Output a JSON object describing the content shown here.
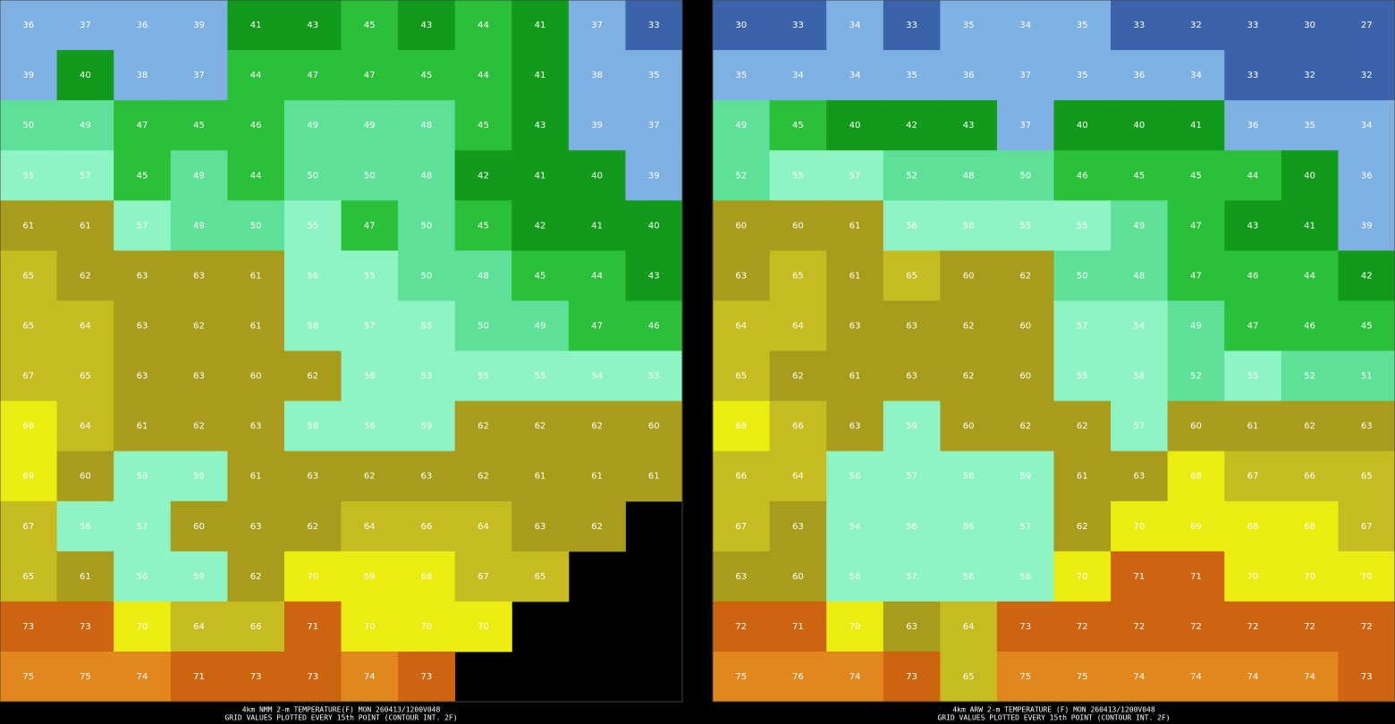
{
  "panels": [
    {
      "grid": [
        [
          36,
          37,
          36,
          39,
          41,
          43,
          45,
          43,
          44,
          41,
          37,
          33
        ],
        [
          39,
          40,
          38,
          37,
          44,
          47,
          47,
          45,
          44,
          41,
          38,
          35
        ],
        [
          50,
          49,
          47,
          45,
          46,
          49,
          49,
          48,
          45,
          43,
          39,
          37
        ],
        [
          55,
          57,
          45,
          49,
          44,
          50,
          50,
          48,
          42,
          41,
          40,
          39
        ],
        [
          61,
          61,
          57,
          49,
          50,
          55,
          47,
          50,
          45,
          42,
          41,
          40
        ],
        [
          65,
          62,
          63,
          63,
          61,
          56,
          55,
          50,
          48,
          45,
          44,
          43
        ],
        [
          65,
          64,
          63,
          62,
          61,
          58,
          57,
          55,
          50,
          49,
          47,
          46
        ],
        [
          67,
          65,
          63,
          63,
          60,
          62,
          58,
          53,
          55,
          55,
          54,
          53
        ],
        [
          68,
          64,
          61,
          62,
          63,
          58,
          56,
          59,
          62,
          62,
          62,
          60
        ],
        [
          69,
          60,
          58,
          59,
          61,
          63,
          62,
          63,
          62,
          61,
          61,
          61
        ],
        [
          67,
          56,
          57,
          60,
          63,
          62,
          64,
          66,
          64,
          63,
          62,
          null
        ],
        [
          65,
          61,
          56,
          59,
          62,
          70,
          69,
          68,
          67,
          65,
          null,
          null
        ],
        [
          73,
          73,
          70,
          64,
          66,
          71,
          70,
          70,
          70,
          null,
          null,
          null
        ],
        [
          75,
          75,
          74,
          71,
          73,
          73,
          74,
          73,
          null,
          null,
          null,
          null
        ]
      ],
      "caption": [
        "4km NMM 2-m TEMPERATURE(F) MON 260413/1200V048",
        "GRID VALUES PLOTTED EVERY 15th POINT (CONTOUR INT. 2F)"
      ]
    },
    {
      "grid": [
        [
          30,
          33,
          34,
          33,
          35,
          34,
          35,
          33,
          32,
          33,
          30,
          27
        ],
        [
          35,
          34,
          34,
          35,
          36,
          37,
          35,
          36,
          34,
          33,
          32,
          32
        ],
        [
          49,
          45,
          40,
          42,
          43,
          37,
          40,
          40,
          41,
          36,
          35,
          34
        ],
        [
          52,
          55,
          57,
          52,
          48,
          50,
          46,
          45,
          45,
          44,
          40,
          36
        ],
        [
          60,
          60,
          61,
          56,
          58,
          55,
          55,
          49,
          47,
          43,
          41,
          39
        ],
        [
          63,
          65,
          61,
          65,
          60,
          62,
          50,
          48,
          47,
          46,
          44,
          42
        ],
        [
          64,
          64,
          63,
          63,
          62,
          60,
          57,
          54,
          49,
          47,
          46,
          45
        ],
        [
          65,
          62,
          61,
          63,
          62,
          60,
          55,
          58,
          52,
          55,
          52,
          51
        ],
        [
          68,
          66,
          63,
          59,
          60,
          62,
          62,
          57,
          60,
          61,
          62,
          63
        ],
        [
          66,
          64,
          56,
          57,
          58,
          59,
          61,
          63,
          68,
          67,
          66,
          65
        ],
        [
          67,
          63,
          54,
          58,
          56,
          57,
          62,
          70,
          69,
          68,
          68,
          67
        ],
        [
          63,
          60,
          56,
          57,
          58,
          56,
          70,
          71,
          71,
          70,
          70,
          70
        ],
        [
          72,
          71,
          70,
          63,
          64,
          73,
          72,
          72,
          72,
          72,
          72,
          72
        ],
        [
          75,
          76,
          74,
          73,
          65,
          75,
          75,
          74,
          74,
          74,
          74,
          73
        ]
      ],
      "caption": [
        "4km ARW 2-m TEMPERATURE (F) MON 260413/1200V048",
        "GRID VALUES PLOTTED EVERY 15th POINT (CONTOUR INT. 2F)"
      ]
    }
  ]
}
